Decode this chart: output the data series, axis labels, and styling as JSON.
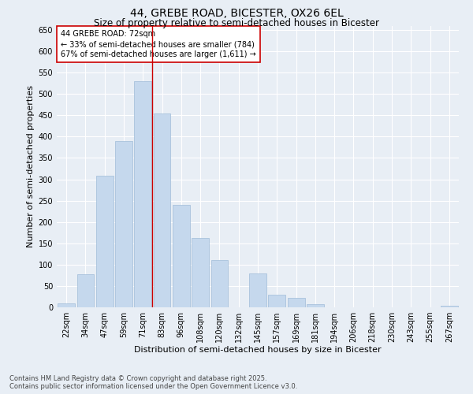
{
  "title": "44, GREBE ROAD, BICESTER, OX26 6EL",
  "subtitle": "Size of property relative to semi-detached houses in Bicester",
  "xlabel": "Distribution of semi-detached houses by size in Bicester",
  "ylabel": "Number of semi-detached properties",
  "categories": [
    "22sqm",
    "34sqm",
    "47sqm",
    "59sqm",
    "71sqm",
    "83sqm",
    "96sqm",
    "108sqm",
    "120sqm",
    "132sqm",
    "145sqm",
    "157sqm",
    "169sqm",
    "181sqm",
    "194sqm",
    "206sqm",
    "218sqm",
    "230sqm",
    "243sqm",
    "255sqm",
    "267sqm"
  ],
  "values": [
    10,
    78,
    308,
    390,
    530,
    455,
    240,
    162,
    110,
    0,
    80,
    30,
    22,
    8,
    0,
    0,
    0,
    0,
    0,
    0,
    3
  ],
  "bar_color": "#c5d8ed",
  "bar_edge_color": "#a0bcd8",
  "vline_x_idx": 4,
  "vline_color": "#cc0000",
  "annotation_text": "44 GREBE ROAD: 72sqm\n← 33% of semi-detached houses are smaller (784)\n67% of semi-detached houses are larger (1,611) →",
  "annotation_box_color": "#ffffff",
  "annotation_box_edge": "#cc0000",
  "ylim": [
    0,
    660
  ],
  "yticks": [
    0,
    50,
    100,
    150,
    200,
    250,
    300,
    350,
    400,
    450,
    500,
    550,
    600,
    650
  ],
  "footnote": "Contains HM Land Registry data © Crown copyright and database right 2025.\nContains public sector information licensed under the Open Government Licence v3.0.",
  "bg_color": "#e8eef5",
  "grid_color": "#ffffff",
  "title_fontsize": 10,
  "subtitle_fontsize": 8.5,
  "xlabel_fontsize": 8,
  "ylabel_fontsize": 8,
  "tick_fontsize": 7,
  "annotation_fontsize": 7,
  "footnote_fontsize": 6
}
